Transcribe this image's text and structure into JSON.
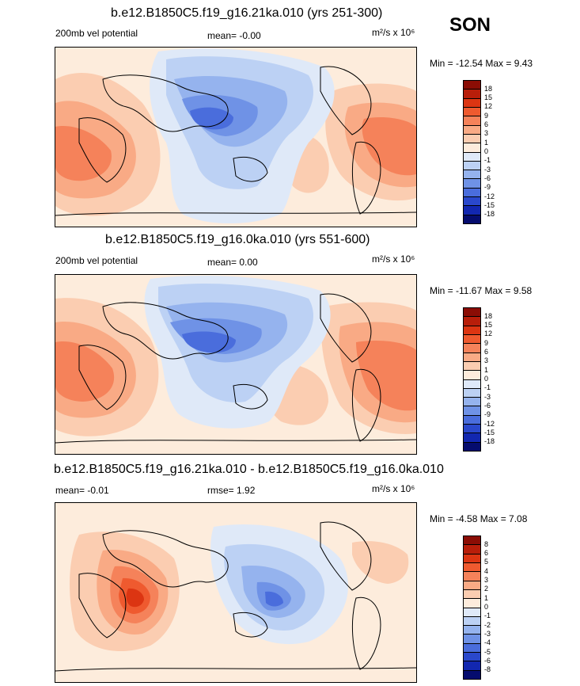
{
  "header": {
    "season": "SON"
  },
  "panels": [
    {
      "title": "b.e12.B1850C5.f19_g16.21ka.010 (yrs 251-300)",
      "left_label": "200mb vel potential",
      "center_label": "mean=  -0.00",
      "units": "m²/s x 10⁶",
      "minmax": "Min = -12.54 Max =   9.43",
      "colorbar": {
        "labels": [
          "18",
          "15",
          "12",
          "9",
          "6",
          "3",
          "1",
          "0",
          "-1",
          "-3",
          "-6",
          "-9",
          "-12",
          "-15",
          "-18"
        ],
        "colors": [
          "#8b0d05",
          "#b81e0a",
          "#dc3512",
          "#ef5a2f",
          "#f5825a",
          "#f9aa85",
          "#fbcdb1",
          "#fdecdc",
          "#dfe9f8",
          "#bcd1f4",
          "#95b3ee",
          "#6f92e6",
          "#4a6ddc",
          "#2a48cc",
          "#1227b0",
          "#050c6e"
        ]
      }
    },
    {
      "title": "b.e12.B1850C5.f19_g16.0ka.010 (yrs 551-600)",
      "left_label": "200mb vel potential",
      "center_label": "mean=   0.00",
      "units": "m²/s x 10⁶",
      "minmax": "Min = -11.67 Max =   9.58",
      "colorbar": {
        "labels": [
          "18",
          "15",
          "12",
          "9",
          "6",
          "3",
          "1",
          "0",
          "-1",
          "-3",
          "-6",
          "-9",
          "-12",
          "-15",
          "-18"
        ],
        "colors": [
          "#8b0d05",
          "#b81e0a",
          "#dc3512",
          "#ef5a2f",
          "#f5825a",
          "#f9aa85",
          "#fbcdb1",
          "#fdecdc",
          "#dfe9f8",
          "#bcd1f4",
          "#95b3ee",
          "#6f92e6",
          "#4a6ddc",
          "#2a48cc",
          "#1227b0",
          "#050c6e"
        ]
      }
    },
    {
      "title": "b.e12.B1850C5.f19_g16.21ka.010 - b.e12.B1850C5.f19_g16.0ka.010",
      "left_label": "mean=  -0.01",
      "center_label": "rmse=   1.92",
      "units": "m²/s x 10⁶",
      "minmax": "Min =  -4.58 Max =   7.08",
      "colorbar": {
        "labels": [
          "8",
          "6",
          "5",
          "4",
          "3",
          "2",
          "1",
          "0",
          "-1",
          "-2",
          "-3",
          "-4",
          "-5",
          "-6",
          "-8"
        ],
        "colors": [
          "#8b0d05",
          "#b81e0a",
          "#dc3512",
          "#ef5a2f",
          "#f5825a",
          "#f9aa85",
          "#fbcdb1",
          "#fdecdc",
          "#dfe9f8",
          "#bcd1f4",
          "#95b3ee",
          "#6f92e6",
          "#4a6ddc",
          "#2a48cc",
          "#1227b0",
          "#050c6e"
        ]
      }
    }
  ],
  "chart_data": [
    {
      "type": "heatmap",
      "title": "b.e12.B1850C5.f19_g16.21ka.010 (yrs 251-300)",
      "variable": "200mb vel potential",
      "mean": -0.0,
      "min": -12.54,
      "max": 9.43,
      "contour_levels": [
        -18,
        -15,
        -12,
        -9,
        -6,
        -3,
        -1,
        0,
        1,
        3,
        6,
        9,
        12,
        15,
        18
      ]
    },
    {
      "type": "heatmap",
      "title": "b.e12.B1850C5.f19_g16.0ka.010 (yrs 551-600)",
      "variable": "200mb vel potential",
      "mean": 0.0,
      "min": -11.67,
      "max": 9.58,
      "contour_levels": [
        -18,
        -15,
        -12,
        -9,
        -6,
        -3,
        -1,
        0,
        1,
        3,
        6,
        9,
        12,
        15,
        18
      ]
    },
    {
      "type": "heatmap",
      "title": "b.e12.B1850C5.f19_g16.21ka.010 - b.e12.B1850C5.f19_g16.0ka.010",
      "mean": -0.01,
      "rmse": 1.92,
      "min": -4.58,
      "max": 7.08,
      "contour_levels": [
        -8,
        -6,
        -5,
        -4,
        -3,
        -2,
        -1,
        0,
        1,
        2,
        3,
        4,
        5,
        6,
        8
      ]
    }
  ]
}
